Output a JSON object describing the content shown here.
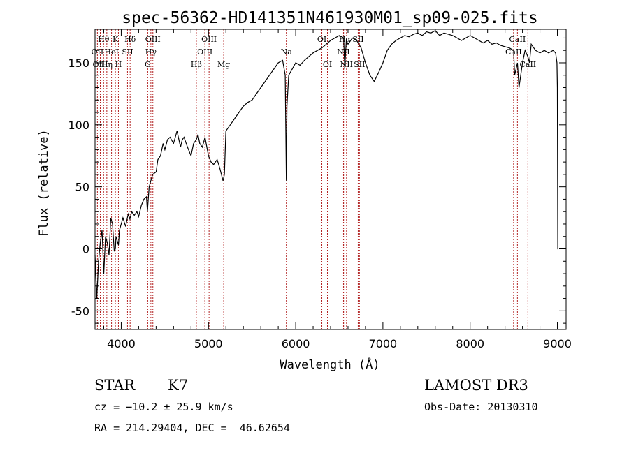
{
  "chart_data": {
    "type": "line",
    "title": "spec-56362-HD141351N461930M01_sp09-025.fits",
    "xlabel": "Wavelength (Å)",
    "ylabel": "Flux (relative)",
    "xlim": [
      3700,
      9100
    ],
    "ylim": [
      -65,
      177
    ],
    "xticks": [
      4000,
      5000,
      6000,
      7000,
      8000,
      9000
    ],
    "yticks": [
      -50,
      0,
      50,
      100,
      150
    ],
    "grid": false,
    "series": [
      {
        "name": "flux",
        "color": "#000000",
        "x": [
          3700,
          3720,
          3740,
          3760,
          3780,
          3800,
          3820,
          3840,
          3860,
          3880,
          3900,
          3920,
          3933,
          3940,
          3960,
          3968,
          3980,
          4000,
          4020,
          4050,
          4080,
          4100,
          4120,
          4150,
          4180,
          4200,
          4230,
          4260,
          4290,
          4300,
          4320,
          4340,
          4360,
          4400,
          4420,
          4450,
          4480,
          4500,
          4530,
          4560,
          4600,
          4640,
          4680,
          4700,
          4720,
          4760,
          4800,
          4830,
          4861,
          4880,
          4900,
          4930,
          4960,
          5000,
          5030,
          5060,
          5100,
          5130,
          5167,
          5183,
          5200,
          5250,
          5300,
          5350,
          5400,
          5450,
          5500,
          5550,
          5600,
          5650,
          5700,
          5750,
          5800,
          5850,
          5880,
          5893,
          5900,
          5920,
          5960,
          6000,
          6050,
          6100,
          6150,
          6200,
          6250,
          6300,
          6350,
          6400,
          6450,
          6500,
          6550,
          6563,
          6580,
          6600,
          6650,
          6700,
          6750,
          6800,
          6850,
          6900,
          6950,
          7000,
          7050,
          7100,
          7150,
          7200,
          7250,
          7300,
          7350,
          7400,
          7450,
          7500,
          7550,
          7600,
          7650,
          7700,
          7750,
          7800,
          7850,
          7900,
          7950,
          8000,
          8050,
          8100,
          8150,
          8200,
          8250,
          8300,
          8350,
          8400,
          8450,
          8498,
          8510,
          8542,
          8560,
          8600,
          8630,
          8662,
          8680,
          8700,
          8750,
          8800,
          8850,
          8900,
          8950,
          8980,
          8995,
          9000,
          9005,
          9010
        ],
        "y": [
          -5,
          -40,
          -10,
          5,
          15,
          -20,
          10,
          5,
          -5,
          25,
          20,
          -2,
          0,
          10,
          5,
          3,
          15,
          20,
          25,
          18,
          28,
          24,
          30,
          27,
          30,
          26,
          35,
          40,
          42,
          30,
          50,
          55,
          60,
          62,
          72,
          75,
          85,
          80,
          88,
          90,
          85,
          95,
          82,
          88,
          90,
          82,
          75,
          85,
          88,
          92,
          85,
          82,
          90,
          75,
          70,
          68,
          72,
          65,
          55,
          60,
          95,
          100,
          105,
          110,
          115,
          118,
          120,
          125,
          130,
          135,
          140,
          145,
          150,
          152,
          140,
          55,
          115,
          140,
          145,
          150,
          148,
          152,
          155,
          158,
          160,
          162,
          165,
          168,
          170,
          172,
          170,
          145,
          168,
          165,
          170,
          168,
          162,
          150,
          140,
          135,
          142,
          150,
          160,
          165,
          168,
          170,
          172,
          171,
          173,
          174,
          172,
          175,
          174,
          176,
          172,
          174,
          173,
          172,
          170,
          168,
          170,
          172,
          170,
          168,
          166,
          168,
          165,
          166,
          164,
          163,
          162,
          160,
          140,
          150,
          130,
          150,
          160,
          155,
          150,
          165,
          160,
          158,
          160,
          158,
          160,
          158,
          150,
          130,
          0,
          0
        ],
        "values_note": "digitized approximation of plotted spectrum"
      }
    ],
    "spectral_lines": [
      {
        "label": "Hθ",
        "x": 3798,
        "row": 0
      },
      {
        "label": "OII",
        "x": 3727,
        "row": 1
      },
      {
        "label": "OIII",
        "x": 3760,
        "row": 2
      },
      {
        "label": "K",
        "x": 3933,
        "row": 0
      },
      {
        "label": "H",
        "x": 3968,
        "row": 2
      },
      {
        "label": "HeI",
        "x": 3889,
        "row": 1
      },
      {
        "label": "Hη",
        "x": 3835,
        "row": 2
      },
      {
        "label": "Hδ",
        "x": 4102,
        "row": 0
      },
      {
        "label": "SII",
        "x": 4072,
        "row": 1
      },
      {
        "label": "OIII",
        "x": 4363,
        "row": 0
      },
      {
        "label": "Hγ",
        "x": 4340,
        "row": 1
      },
      {
        "label": "G",
        "x": 4304,
        "row": 2
      },
      {
        "label": "Hβ",
        "x": 4861,
        "row": 2
      },
      {
        "label": "OIII",
        "x": 5007,
        "row": 0
      },
      {
        "label": "OIII",
        "x": 4959,
        "row": 1
      },
      {
        "label": "Mg",
        "x": 5175,
        "row": 2
      },
      {
        "label": "Na",
        "x": 5893,
        "row": 1
      },
      {
        "label": "OI",
        "x": 6300,
        "row": 0
      },
      {
        "label": "OI",
        "x": 6364,
        "row": 2
      },
      {
        "label": "Hα",
        "x": 6563,
        "row": 0
      },
      {
        "label": "NII",
        "x": 6548,
        "row": 1
      },
      {
        "label": "NII",
        "x": 6583,
        "row": 2
      },
      {
        "label": "SII",
        "x": 6716,
        "row": 0
      },
      {
        "label": "SII",
        "x": 6731,
        "row": 2
      },
      {
        "label": "CaII",
        "x": 8542,
        "row": 0
      },
      {
        "label": "CaII",
        "x": 8498,
        "row": 1
      },
      {
        "label": "CaII",
        "x": 8662,
        "row": 2
      }
    ]
  },
  "info": {
    "object_class": "STAR",
    "subclass": "K7",
    "survey": "LAMOST DR3",
    "cz": "cz = −10.2 ± 25.9 km/s",
    "obs_date": "Obs-Date: 20130310",
    "coords": "RA = 214.29404, DEC =  46.62654"
  },
  "colors": {
    "line_marker": "#b22222",
    "spectrum": "#000000"
  }
}
